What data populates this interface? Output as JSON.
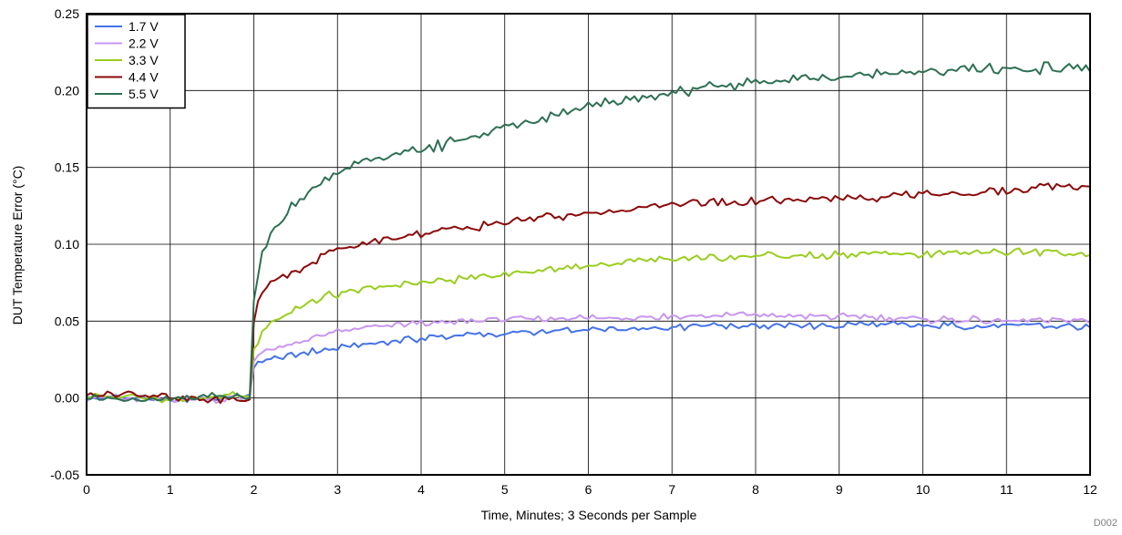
{
  "chart_data": {
    "type": "line",
    "title": "",
    "xlabel": "Time, Minutes; 3 Seconds per Sample",
    "ylabel": "DUT Temperature Error (°C)",
    "xlim": [
      0,
      12
    ],
    "ylim": [
      -0.05,
      0.25
    ],
    "x_ticks": [
      0,
      1,
      2,
      3,
      4,
      5,
      6,
      7,
      8,
      9,
      10,
      11,
      12
    ],
    "x_tick_labels": [
      "0",
      "1",
      "2",
      "3",
      "4",
      "5",
      "6",
      "7",
      "8",
      "9",
      "10",
      "11",
      "12"
    ],
    "y_ticks": [
      -0.05,
      0.0,
      0.05,
      0.1,
      0.15,
      0.2,
      0.25
    ],
    "y_tick_labels": [
      "-0.05",
      "0.00",
      "0.05",
      "0.10",
      "0.15",
      "0.20",
      "0.25"
    ],
    "grid": true,
    "legend_position": "top-left",
    "watermark": "D002",
    "x": [
      0,
      0.5,
      1,
      1.5,
      1.95,
      2.0,
      2.05,
      2.1,
      2.25,
      2.5,
      2.75,
      3.0,
      3.5,
      4.0,
      4.5,
      5.0,
      5.5,
      6.0,
      6.5,
      7.0,
      7.5,
      8.0,
      8.5,
      9.0,
      9.5,
      10.0,
      10.5,
      11.0,
      11.5,
      12.0
    ],
    "series": [
      {
        "name": "1.7 V",
        "color": "#4472e8",
        "values": [
          0.0,
          0.001,
          -0.002,
          0.0,
          0.001,
          0.02,
          0.022,
          0.024,
          0.026,
          0.028,
          0.031,
          0.033,
          0.036,
          0.039,
          0.041,
          0.042,
          0.043,
          0.044,
          0.045,
          0.046,
          0.047,
          0.047,
          0.047,
          0.047,
          0.048,
          0.047,
          0.047,
          0.047,
          0.047,
          0.046
        ]
      },
      {
        "name": "2.2 V",
        "color": "#c896f0",
        "values": [
          0.0,
          -0.001,
          0.0,
          -0.001,
          0.0,
          0.025,
          0.028,
          0.03,
          0.032,
          0.036,
          0.04,
          0.043,
          0.047,
          0.049,
          0.05,
          0.051,
          0.051,
          0.052,
          0.052,
          0.053,
          0.054,
          0.054,
          0.053,
          0.053,
          0.052,
          0.051,
          0.051,
          0.05,
          0.05,
          0.05
        ]
      },
      {
        "name": "3.3 V",
        "color": "#9acd1e",
        "values": [
          0.0,
          0.002,
          -0.001,
          0.001,
          0.002,
          0.03,
          0.038,
          0.045,
          0.052,
          0.058,
          0.064,
          0.068,
          0.072,
          0.075,
          0.078,
          0.081,
          0.084,
          0.086,
          0.088,
          0.09,
          0.091,
          0.092,
          0.093,
          0.093,
          0.094,
          0.094,
          0.095,
          0.095,
          0.095,
          0.094
        ]
      },
      {
        "name": "4.4 V",
        "color": "#8b0a0a",
        "values": [
          0.002,
          0.003,
          0.0,
          -0.001,
          -0.002,
          0.05,
          0.062,
          0.07,
          0.077,
          0.083,
          0.09,
          0.097,
          0.102,
          0.107,
          0.111,
          0.114,
          0.117,
          0.12,
          0.123,
          0.126,
          0.127,
          0.128,
          0.129,
          0.13,
          0.131,
          0.132,
          0.133,
          0.135,
          0.137,
          0.138
        ]
      },
      {
        "name": "5.5 V",
        "color": "#2e7052",
        "values": [
          0.001,
          -0.002,
          -0.001,
          0.001,
          0.001,
          0.06,
          0.08,
          0.095,
          0.11,
          0.127,
          0.138,
          0.148,
          0.156,
          0.161,
          0.168,
          0.176,
          0.183,
          0.19,
          0.195,
          0.199,
          0.203,
          0.205,
          0.207,
          0.209,
          0.211,
          0.212,
          0.213,
          0.214,
          0.215,
          0.215
        ]
      }
    ]
  }
}
